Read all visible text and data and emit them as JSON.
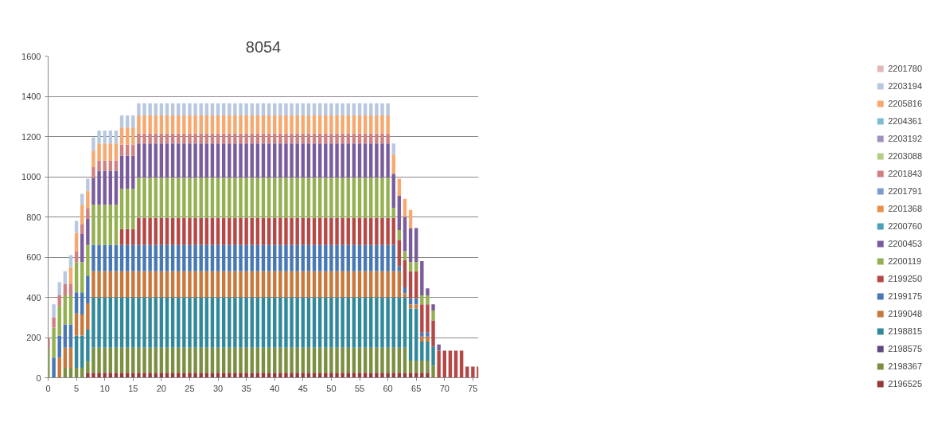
{
  "chart_data": {
    "type": "bar",
    "title": "8054",
    "stacked": true,
    "grid": "y",
    "legend": "right",
    "xlim": [
      0,
      76
    ],
    "xticks": [
      0,
      5,
      10,
      15,
      20,
      25,
      30,
      35,
      40,
      45,
      50,
      55,
      60,
      65,
      70,
      75
    ],
    "ylim": [
      0,
      1600
    ],
    "yticks": [
      0,
      200,
      400,
      600,
      800,
      1000,
      1200,
      1400,
      1600
    ],
    "x": [
      0,
      1,
      2,
      3,
      4,
      5,
      6,
      7,
      8,
      9,
      10,
      11,
      12,
      13,
      14,
      15,
      16,
      17,
      18,
      19,
      20,
      21,
      22,
      23,
      24,
      25,
      26,
      27,
      28,
      29,
      30,
      31,
      32,
      33,
      34,
      35,
      36,
      37,
      38,
      39,
      40,
      41,
      42,
      43,
      44,
      45,
      46,
      47,
      48,
      49,
      50,
      51,
      52,
      53,
      54,
      55,
      56,
      57,
      58,
      59,
      60,
      61,
      62,
      63,
      64,
      65,
      66,
      67,
      68,
      69,
      70,
      71,
      72,
      73,
      74,
      75,
      76
    ],
    "series": [
      {
        "name": "2196525",
        "color": "#943a38",
        "values": [
          0,
          0,
          0,
          0,
          0,
          0,
          0,
          25,
          25,
          25,
          25,
          25,
          25,
          25,
          25,
          25,
          25,
          25,
          25,
          25,
          25,
          25,
          25,
          25,
          25,
          25,
          25,
          25,
          25,
          25,
          25,
          25,
          25,
          25,
          25,
          25,
          25,
          25,
          25,
          25,
          25,
          25,
          25,
          25,
          25,
          25,
          25,
          25,
          25,
          25,
          25,
          25,
          25,
          25,
          25,
          25,
          25,
          25,
          25,
          25,
          25,
          25,
          25,
          25,
          25,
          25,
          25,
          25,
          0,
          0,
          0,
          0,
          0,
          0,
          0,
          0,
          0
        ]
      },
      {
        "name": "2198367",
        "color": "#7a9040",
        "values": [
          0,
          0,
          0,
          50,
          50,
          50,
          50,
          55,
          125,
          125,
          125,
          125,
          125,
          125,
          125,
          125,
          125,
          125,
          125,
          125,
          125,
          125,
          125,
          125,
          125,
          125,
          125,
          125,
          125,
          125,
          125,
          125,
          125,
          125,
          125,
          125,
          125,
          125,
          125,
          125,
          125,
          125,
          125,
          125,
          125,
          125,
          125,
          125,
          125,
          125,
          125,
          125,
          125,
          125,
          125,
          125,
          125,
          125,
          125,
          125,
          125,
          125,
          125,
          125,
          60,
          60,
          60,
          60,
          60,
          0,
          0,
          0,
          0,
          0,
          0,
          0,
          0
        ]
      },
      {
        "name": "2198575",
        "color": "#60487c",
        "values": [
          0,
          0,
          0,
          0,
          0,
          0,
          0,
          0,
          0,
          0,
          0,
          0,
          0,
          0,
          0,
          0,
          0,
          0,
          0,
          0,
          0,
          0,
          0,
          0,
          0,
          0,
          0,
          0,
          0,
          0,
          0,
          0,
          0,
          0,
          0,
          0,
          0,
          0,
          0,
          0,
          0,
          0,
          0,
          0,
          0,
          0,
          0,
          0,
          0,
          0,
          0,
          0,
          0,
          0,
          0,
          0,
          0,
          0,
          0,
          0,
          0,
          0,
          0,
          0,
          0,
          0,
          0,
          0,
          0,
          0,
          0,
          0,
          0,
          0,
          0,
          0,
          0
        ]
      },
      {
        "name": "2198815",
        "color": "#30889a",
        "values": [
          0,
          0,
          0,
          0,
          0,
          160,
          160,
          160,
          250,
          250,
          250,
          250,
          250,
          250,
          250,
          250,
          250,
          250,
          250,
          250,
          250,
          250,
          250,
          250,
          250,
          250,
          250,
          250,
          250,
          250,
          250,
          250,
          250,
          250,
          250,
          250,
          250,
          250,
          250,
          250,
          250,
          250,
          250,
          250,
          250,
          250,
          250,
          250,
          250,
          250,
          250,
          250,
          250,
          250,
          250,
          250,
          250,
          250,
          250,
          250,
          250,
          250,
          250,
          250,
          260,
          260,
          95,
          95,
          95,
          0,
          0,
          0,
          0,
          0,
          0,
          0,
          0
        ]
      },
      {
        "name": "2199048",
        "color": "#c8783a",
        "values": [
          0,
          0,
          100,
          100,
          100,
          110,
          105,
          130,
          130,
          130,
          130,
          130,
          130,
          130,
          130,
          130,
          130,
          130,
          130,
          130,
          130,
          130,
          130,
          130,
          130,
          130,
          130,
          130,
          130,
          130,
          130,
          130,
          130,
          130,
          130,
          130,
          130,
          130,
          130,
          130,
          130,
          130,
          130,
          130,
          130,
          130,
          130,
          130,
          130,
          130,
          130,
          130,
          130,
          130,
          130,
          130,
          130,
          130,
          130,
          130,
          130,
          130,
          130,
          20,
          20,
          20,
          25,
          25,
          0,
          0,
          0,
          0,
          0,
          0,
          0,
          0,
          0
        ]
      },
      {
        "name": "2199175",
        "color": "#4878b4",
        "values": [
          0,
          100,
          110,
          115,
          115,
          105,
          110,
          135,
          130,
          130,
          130,
          130,
          130,
          130,
          130,
          130,
          130,
          130,
          130,
          130,
          130,
          130,
          130,
          130,
          130,
          130,
          130,
          130,
          130,
          130,
          130,
          130,
          130,
          130,
          130,
          130,
          130,
          130,
          130,
          130,
          130,
          130,
          130,
          130,
          130,
          130,
          130,
          130,
          130,
          130,
          130,
          130,
          130,
          130,
          130,
          130,
          130,
          130,
          130,
          130,
          130,
          130,
          25,
          30,
          30,
          30,
          20,
          20,
          0,
          0,
          0,
          0,
          0,
          0,
          0,
          0,
          0
        ]
      },
      {
        "name": "2199250",
        "color": "#b44846",
        "values": [
          0,
          0,
          0,
          0,
          0,
          0,
          0,
          0,
          0,
          0,
          0,
          0,
          0,
          80,
          80,
          80,
          135,
          135,
          135,
          135,
          135,
          135,
          135,
          135,
          135,
          135,
          135,
          135,
          135,
          135,
          135,
          135,
          135,
          135,
          135,
          135,
          135,
          135,
          135,
          135,
          135,
          135,
          135,
          135,
          135,
          135,
          135,
          135,
          135,
          135,
          135,
          135,
          135,
          135,
          135,
          135,
          135,
          135,
          135,
          135,
          135,
          135,
          130,
          135,
          135,
          135,
          140,
          140,
          130,
          135,
          135,
          135,
          135,
          135,
          55,
          55,
          55
        ]
      },
      {
        "name": "2200119",
        "color": "#94b050",
        "values": [
          145,
          150,
          145,
          145,
          145,
          150,
          150,
          155,
          200,
          200,
          200,
          200,
          200,
          200,
          200,
          200,
          200,
          200,
          200,
          200,
          200,
          200,
          200,
          200,
          200,
          200,
          200,
          200,
          200,
          200,
          200,
          200,
          200,
          200,
          200,
          200,
          200,
          200,
          200,
          200,
          200,
          200,
          200,
          200,
          200,
          200,
          200,
          200,
          200,
          200,
          200,
          200,
          200,
          200,
          200,
          200,
          200,
          200,
          200,
          200,
          200,
          50,
          50,
          45,
          45,
          45,
          45,
          45,
          50,
          0,
          0,
          0,
          0,
          0,
          0,
          0,
          0
        ]
      },
      {
        "name": "2200453",
        "color": "#7a5c9c",
        "values": [
          0,
          0,
          0,
          0,
          0,
          0,
          140,
          130,
          135,
          170,
          170,
          170,
          170,
          165,
          165,
          165,
          170,
          170,
          170,
          170,
          170,
          170,
          170,
          170,
          170,
          170,
          170,
          170,
          170,
          170,
          170,
          170,
          170,
          170,
          170,
          170,
          170,
          170,
          170,
          170,
          170,
          170,
          170,
          170,
          170,
          170,
          170,
          170,
          170,
          170,
          170,
          170,
          170,
          170,
          170,
          170,
          170,
          170,
          170,
          170,
          170,
          170,
          170,
          170,
          170,
          170,
          170,
          35,
          30,
          30,
          0,
          0,
          0,
          0,
          0,
          0,
          0
        ]
      },
      {
        "name": "2200760",
        "color": "#4aa0b8",
        "values": [
          0,
          0,
          0,
          0,
          0,
          0,
          0,
          0,
          0,
          0,
          0,
          0,
          0,
          0,
          0,
          0,
          0,
          0,
          0,
          0,
          0,
          0,
          0,
          0,
          0,
          0,
          0,
          0,
          0,
          0,
          0,
          0,
          0,
          0,
          0,
          0,
          0,
          0,
          0,
          0,
          0,
          0,
          0,
          0,
          0,
          0,
          0,
          0,
          0,
          0,
          0,
          0,
          0,
          0,
          0,
          0,
          0,
          0,
          0,
          0,
          0,
          0,
          0,
          0,
          0,
          0,
          0,
          0,
          0,
          0,
          0,
          0,
          0,
          0,
          0,
          0,
          0
        ]
      },
      {
        "name": "2201368",
        "color": "#e89048",
        "values": [
          0,
          0,
          0,
          0,
          0,
          0,
          0,
          0,
          0,
          0,
          0,
          0,
          0,
          0,
          0,
          0,
          0,
          0,
          0,
          0,
          0,
          0,
          0,
          0,
          0,
          0,
          0,
          0,
          0,
          0,
          0,
          0,
          0,
          0,
          0,
          0,
          0,
          0,
          0,
          0,
          0,
          0,
          0,
          0,
          0,
          0,
          0,
          0,
          0,
          0,
          0,
          0,
          0,
          0,
          0,
          0,
          0,
          0,
          0,
          0,
          0,
          0,
          0,
          0,
          0,
          0,
          0,
          0,
          0,
          0,
          0,
          0,
          0,
          0,
          0,
          0,
          0
        ]
      },
      {
        "name": "2201791",
        "color": "#7c9cd0",
        "values": [
          0,
          0,
          0,
          0,
          0,
          0,
          0,
          0,
          0,
          0,
          0,
          0,
          0,
          0,
          0,
          0,
          0,
          0,
          0,
          0,
          0,
          0,
          0,
          0,
          0,
          0,
          0,
          0,
          0,
          0,
          0,
          0,
          0,
          0,
          0,
          0,
          0,
          0,
          0,
          0,
          0,
          0,
          0,
          0,
          0,
          0,
          0,
          0,
          0,
          0,
          0,
          0,
          0,
          0,
          0,
          0,
          0,
          0,
          0,
          0,
          0,
          0,
          0,
          0,
          0,
          0,
          0,
          0,
          0,
          0,
          0,
          0,
          0,
          0,
          0,
          0,
          0
        ]
      },
      {
        "name": "2201843",
        "color": "#d08080",
        "values": [
          55,
          50,
          55,
          55,
          55,
          55,
          50,
          55,
          55,
          50,
          50,
          50,
          50,
          55,
          55,
          55,
          50,
          50,
          50,
          50,
          50,
          50,
          50,
          50,
          50,
          50,
          50,
          50,
          50,
          50,
          50,
          50,
          50,
          50,
          50,
          50,
          50,
          50,
          50,
          50,
          50,
          50,
          50,
          50,
          50,
          50,
          50,
          50,
          50,
          50,
          50,
          50,
          50,
          50,
          50,
          50,
          50,
          50,
          50,
          50,
          50,
          0,
          0,
          0,
          0,
          0,
          0,
          0,
          0,
          0,
          0,
          0,
          0,
          0,
          0,
          0,
          0
        ]
      },
      {
        "name": "2203088",
        "color": "#b4cc84",
        "values": [
          0,
          0,
          0,
          0,
          0,
          0,
          0,
          0,
          0,
          0,
          0,
          0,
          0,
          0,
          0,
          0,
          0,
          0,
          0,
          0,
          0,
          0,
          0,
          0,
          0,
          0,
          0,
          0,
          0,
          0,
          0,
          0,
          0,
          0,
          0,
          0,
          0,
          0,
          0,
          0,
          0,
          0,
          0,
          0,
          0,
          0,
          0,
          0,
          0,
          0,
          0,
          0,
          0,
          0,
          0,
          0,
          0,
          0,
          0,
          0,
          0,
          0,
          0,
          0,
          0,
          0,
          0,
          0,
          0,
          0,
          0,
          0,
          0,
          0,
          0,
          0,
          0
        ]
      },
      {
        "name": "2203192",
        "color": "#a090bc",
        "values": [
          0,
          0,
          0,
          0,
          0,
          0,
          0,
          0,
          0,
          0,
          0,
          0,
          0,
          0,
          0,
          0,
          0,
          0,
          0,
          0,
          0,
          0,
          0,
          0,
          0,
          0,
          0,
          0,
          0,
          0,
          0,
          0,
          0,
          0,
          0,
          0,
          0,
          0,
          0,
          0,
          0,
          0,
          0,
          0,
          0,
          0,
          0,
          0,
          0,
          0,
          0,
          0,
          0,
          0,
          0,
          0,
          0,
          0,
          0,
          0,
          0,
          0,
          0,
          0,
          0,
          0,
          0,
          0,
          0,
          0,
          0,
          0,
          0,
          0,
          0,
          0,
          0
        ]
      },
      {
        "name": "2204361",
        "color": "#7cbcd0",
        "values": [
          0,
          0,
          0,
          0,
          0,
          0,
          0,
          0,
          0,
          0,
          0,
          0,
          0,
          0,
          0,
          0,
          0,
          0,
          0,
          0,
          0,
          0,
          0,
          0,
          0,
          0,
          0,
          0,
          0,
          0,
          0,
          0,
          0,
          0,
          0,
          0,
          0,
          0,
          0,
          0,
          0,
          0,
          0,
          0,
          0,
          0,
          0,
          0,
          0,
          0,
          0,
          0,
          0,
          0,
          0,
          0,
          0,
          0,
          0,
          0,
          0,
          0,
          0,
          0,
          0,
          0,
          0,
          0,
          0,
          0,
          0,
          0,
          0,
          0,
          0,
          0,
          0
        ]
      },
      {
        "name": "2205816",
        "color": "#f6a86e",
        "values": [
          0,
          0,
          0,
          0,
          85,
          90,
          95,
          85,
          80,
          85,
          85,
          85,
          85,
          85,
          85,
          85,
          90,
          90,
          90,
          90,
          90,
          90,
          90,
          90,
          90,
          90,
          90,
          90,
          90,
          90,
          90,
          90,
          90,
          90,
          90,
          90,
          90,
          90,
          90,
          90,
          90,
          90,
          90,
          90,
          90,
          90,
          90,
          90,
          90,
          90,
          90,
          90,
          90,
          90,
          90,
          90,
          90,
          90,
          90,
          90,
          90,
          95,
          85,
          90,
          90,
          0,
          0,
          0,
          0,
          0,
          0,
          0,
          0,
          0,
          0,
          0,
          0
        ]
      },
      {
        "name": "2203194",
        "color": "#b8c8e0",
        "values": [
          0,
          65,
          65,
          65,
          60,
          60,
          55,
          60,
          65,
          65,
          65,
          65,
          65,
          60,
          60,
          60,
          60,
          60,
          60,
          60,
          60,
          60,
          60,
          60,
          60,
          60,
          60,
          60,
          60,
          60,
          60,
          60,
          60,
          60,
          60,
          60,
          60,
          60,
          60,
          60,
          60,
          60,
          60,
          60,
          60,
          60,
          60,
          60,
          60,
          60,
          60,
          60,
          60,
          60,
          60,
          60,
          60,
          60,
          60,
          60,
          60,
          55,
          0,
          0,
          0,
          0,
          0,
          0,
          0,
          0,
          0,
          0,
          0,
          0,
          0,
          0,
          0
        ]
      },
      {
        "name": "2201780",
        "color": "#e0b8b8",
        "values": [
          0,
          0,
          0,
          0,
          0,
          0,
          0,
          0,
          0,
          0,
          0,
          0,
          0,
          0,
          0,
          0,
          0,
          0,
          0,
          0,
          0,
          0,
          0,
          0,
          0,
          0,
          0,
          0,
          0,
          0,
          0,
          0,
          0,
          0,
          0,
          0,
          0,
          0,
          0,
          0,
          0,
          0,
          0,
          0,
          0,
          0,
          0,
          0,
          0,
          0,
          0,
          0,
          0,
          0,
          0,
          0,
          0,
          0,
          0,
          0,
          0,
          0,
          0,
          0,
          0,
          0,
          0,
          0,
          0,
          0,
          0,
          0,
          0,
          0,
          0,
          0,
          0
        ]
      }
    ]
  }
}
